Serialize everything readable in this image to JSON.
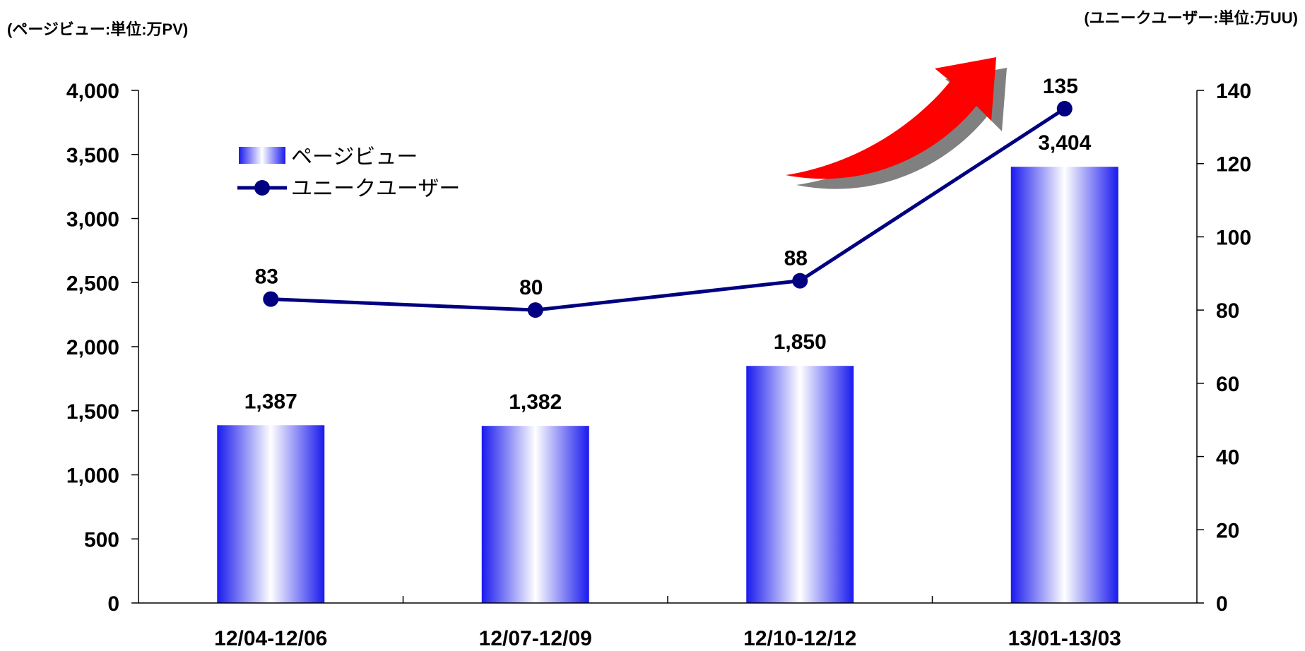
{
  "units": {
    "left": "(ページビュー:単位:万PV)",
    "right": "(ユニークユーザー:単位:万UU)"
  },
  "colors": {
    "bar": "#1a1aee",
    "bar_light": "#ffffff",
    "line": "#000080",
    "arrow": "#ff0000",
    "arrow_shadow": "#808080",
    "axis": "#000000"
  },
  "chart_data": {
    "type": "bar",
    "categories": [
      "12/04-12/06",
      "12/07-12/09",
      "12/10-12/12",
      "13/01-13/03"
    ],
    "series": [
      {
        "name": "ページビュー",
        "type": "bar",
        "axis": "left",
        "values": [
          1387,
          1382,
          1850,
          3404
        ],
        "labels": [
          "1,387",
          "1,382",
          "1,850",
          "3,404"
        ]
      },
      {
        "name": "ユニークユーザー",
        "type": "line",
        "axis": "right",
        "values": [
          83,
          80,
          88,
          135
        ],
        "labels": [
          "83",
          "80",
          "88",
          "135"
        ]
      }
    ],
    "y_left": {
      "lim": [
        0,
        4000
      ],
      "ticks": [
        0,
        500,
        1000,
        1500,
        2000,
        2500,
        3000,
        3500,
        4000
      ],
      "tick_labels": [
        "0",
        "500",
        "1,000",
        "1,500",
        "2,000",
        "2,500",
        "3,000",
        "3,500",
        "4,000"
      ]
    },
    "y_right": {
      "lim": [
        0,
        140
      ],
      "ticks": [
        0,
        20,
        40,
        60,
        80,
        100,
        120,
        140
      ],
      "tick_labels": [
        "0",
        "20",
        "40",
        "60",
        "80",
        "100",
        "120",
        "140"
      ]
    },
    "grid": false,
    "legend_position": "top-left",
    "annotation": "red-upward-arrow-icon"
  }
}
